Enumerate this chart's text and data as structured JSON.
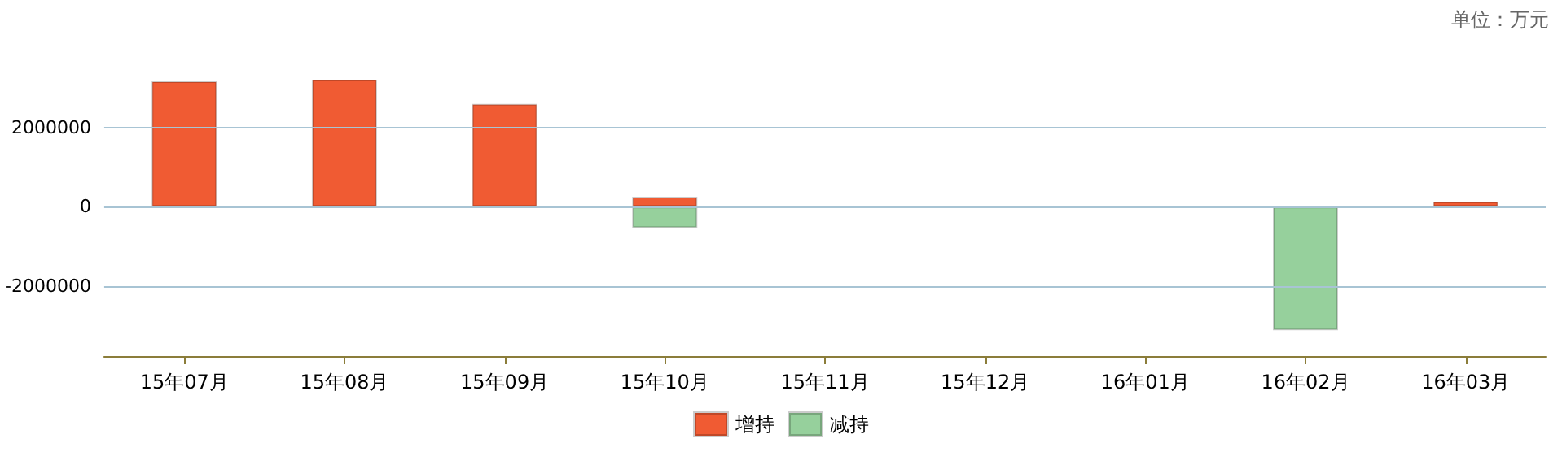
{
  "chart_data": {
    "type": "bar",
    "stacked": true,
    "annotations": [
      "单位：万元"
    ],
    "categories": [
      "15年07月",
      "15年08月",
      "15年09月",
      "15年10月",
      "15年11月",
      "15年12月",
      "16年01月",
      "16年02月",
      "16年03月"
    ],
    "series": [
      {
        "name": "增持",
        "color": "#f05b33",
        "values": [
          3160000,
          3200000,
          2590000,
          250000,
          null,
          null,
          null,
          null,
          130000
        ]
      },
      {
        "name": "减持",
        "color": "#96d09c",
        "values": [
          null,
          null,
          null,
          -530000,
          null,
          null,
          null,
          -3110000,
          null
        ]
      }
    ],
    "ylim": [
      -3760000,
      3200000
    ],
    "yticks": [
      -2000000,
      0,
      2000000
    ],
    "grid": "y",
    "legend": "bottom"
  }
}
